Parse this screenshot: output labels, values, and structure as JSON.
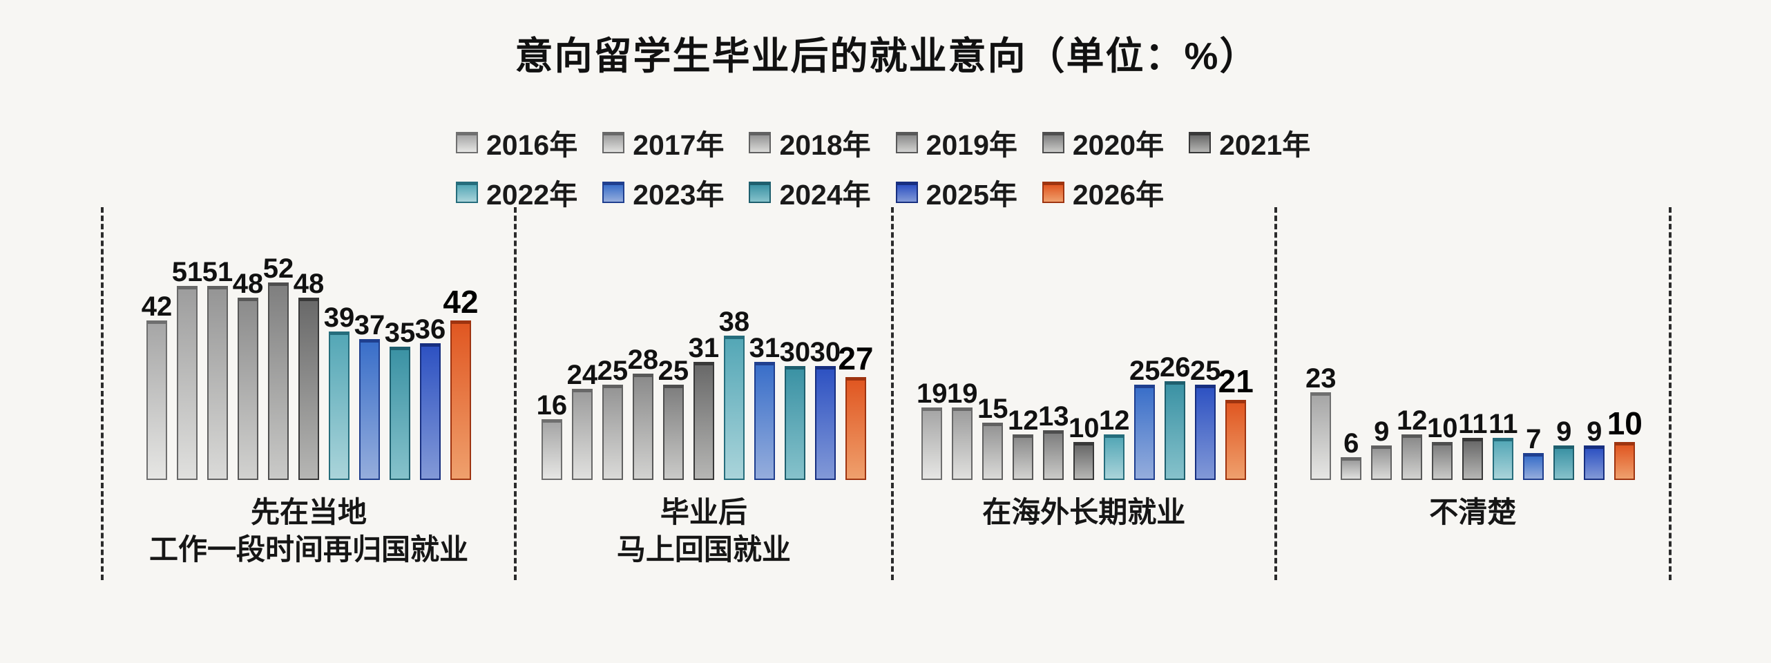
{
  "title": "意向留学生毕业后的就业意向",
  "unit_label": "（单位：%）",
  "chart_data": {
    "type": "bar",
    "title": "意向留学生毕业后的就业意向",
    "unit_label": "（单位：%）",
    "ylabel": "",
    "xlabel": "",
    "ylim": [
      0,
      55
    ],
    "grid": false,
    "legend_position": "top",
    "legend_row_split": [
      6,
      5
    ],
    "emphasized_year": "2026年",
    "years": [
      {
        "label": "2016年",
        "color_top": "#a6a6a6",
        "color_bottom": "#e6e6e4",
        "color_border": "#6f6f6f"
      },
      {
        "label": "2017年",
        "color_top": "#9d9d9d",
        "color_bottom": "#e0e0de",
        "color_border": "#686868"
      },
      {
        "label": "2018年",
        "color_top": "#959595",
        "color_bottom": "#dadad8",
        "color_border": "#616161"
      },
      {
        "label": "2019年",
        "color_top": "#8b8b8b",
        "color_bottom": "#d2d2d0",
        "color_border": "#585858"
      },
      {
        "label": "2020年",
        "color_top": "#7f7f7f",
        "color_bottom": "#cacac8",
        "color_border": "#4e4e4e"
      },
      {
        "label": "2021年",
        "color_top": "#696969",
        "color_bottom": "#b6b6b4",
        "color_border": "#383838"
      },
      {
        "label": "2022年",
        "color_top": "#54a7b6",
        "color_bottom": "#aad4da",
        "color_border": "#256d7c"
      },
      {
        "label": "2023年",
        "color_top": "#3a6fc9",
        "color_bottom": "#95addc",
        "color_border": "#1f3f8f"
      },
      {
        "label": "2024年",
        "color_top": "#3b92a4",
        "color_bottom": "#86c2cb",
        "color_border": "#1e5f6e"
      },
      {
        "label": "2025年",
        "color_top": "#2e52c2",
        "color_bottom": "#8299d7",
        "color_border": "#172f80"
      },
      {
        "label": "2026年",
        "color_top": "#e05722",
        "color_bottom": "#efa06d",
        "color_border": "#9e3410"
      }
    ],
    "groups": [
      {
        "label_lines": [
          "先在当地",
          "工作一段时间再归国就业"
        ],
        "values": [
          42,
          51,
          51,
          48,
          52,
          48,
          39,
          37,
          35,
          36,
          42
        ]
      },
      {
        "label_lines": [
          "毕业后",
          "马上回国就业"
        ],
        "values": [
          16,
          24,
          25,
          28,
          25,
          31,
          38,
          31,
          30,
          30,
          27
        ]
      },
      {
        "label_lines": [
          "在海外长期就业"
        ],
        "values": [
          19,
          19,
          15,
          12,
          13,
          10,
          12,
          25,
          26,
          25,
          21
        ]
      },
      {
        "label_lines": [
          "不清楚"
        ],
        "values": [
          23,
          6,
          9,
          12,
          10,
          11,
          11,
          7,
          9,
          9,
          10
        ]
      }
    ]
  }
}
